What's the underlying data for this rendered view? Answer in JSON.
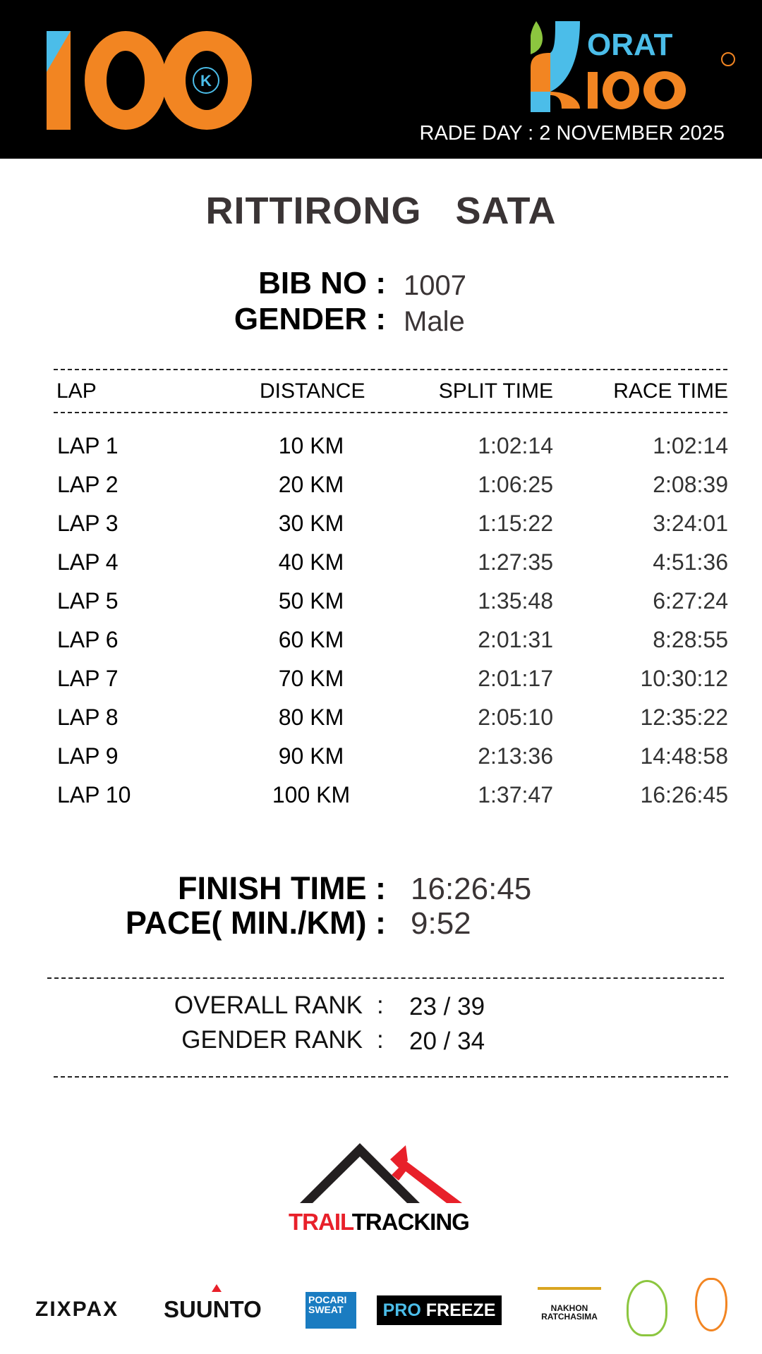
{
  "header": {
    "left_logo_text": "100",
    "left_logo_badge": "K",
    "right_logo_text": "KORAT 100",
    "race_day": "RADE DAY : 2 NOVEMBER 2025"
  },
  "runner": {
    "name": "RITTIRONG   SATA",
    "bib_label": "BIB NO :",
    "bib": "1007",
    "gender_label": "GENDER :",
    "gender": "Male"
  },
  "table": {
    "headers": [
      "LAP",
      "DISTANCE",
      "SPLIT TIME",
      "RACE TIME"
    ],
    "rows": [
      {
        "lap": "LAP 1",
        "distance": "10 KM",
        "split": "1:02:14",
        "race": "1:02:14"
      },
      {
        "lap": "LAP 2",
        "distance": "20 KM",
        "split": "1:06:25",
        "race": "2:08:39"
      },
      {
        "lap": "LAP 3",
        "distance": "30 KM",
        "split": "1:15:22",
        "race": "3:24:01"
      },
      {
        "lap": "LAP 4",
        "distance": "40 KM",
        "split": "1:27:35",
        "race": "4:51:36"
      },
      {
        "lap": "LAP 5",
        "distance": "50 KM",
        "split": "1:35:48",
        "race": "6:27:24"
      },
      {
        "lap": "LAP 6",
        "distance": "60 KM",
        "split": "2:01:31",
        "race": "8:28:55"
      },
      {
        "lap": "LAP 7",
        "distance": "70 KM",
        "split": "2:01:17",
        "race": "10:30:12"
      },
      {
        "lap": "LAP 8",
        "distance": "80 KM",
        "split": "2:05:10",
        "race": "12:35:22"
      },
      {
        "lap": "LAP 9",
        "distance": "90 KM",
        "split": "2:13:36",
        "race": "14:48:58"
      },
      {
        "lap": "LAP 10",
        "distance": "100 KM",
        "split": "1:37:47",
        "race": "16:26:45"
      }
    ]
  },
  "summary": {
    "finish_label": "FINISH TIME :",
    "finish": "16:26:45",
    "pace_label": "PACE( MIN./KM) :",
    "pace": "9:52"
  },
  "rank": {
    "overall_label": "OVERALL RANK",
    "overall": "23 / 39",
    "gender_label": "GENDER RANK",
    "gender": "20 / 34",
    "colon": ":"
  },
  "footer": {
    "trail_a": "TRAIL",
    "trail_b": "TRACKING",
    "sponsors": [
      "ZIXPAX",
      "SUUNTO",
      "POCARI SWEAT",
      "PRO FREEZE",
      "NAKHON RATCHASIMA",
      "",
      ""
    ]
  },
  "colors": {
    "orange": "#f28522",
    "blue": "#4bbde9",
    "green": "#8cc63f",
    "red": "#e8202a"
  }
}
